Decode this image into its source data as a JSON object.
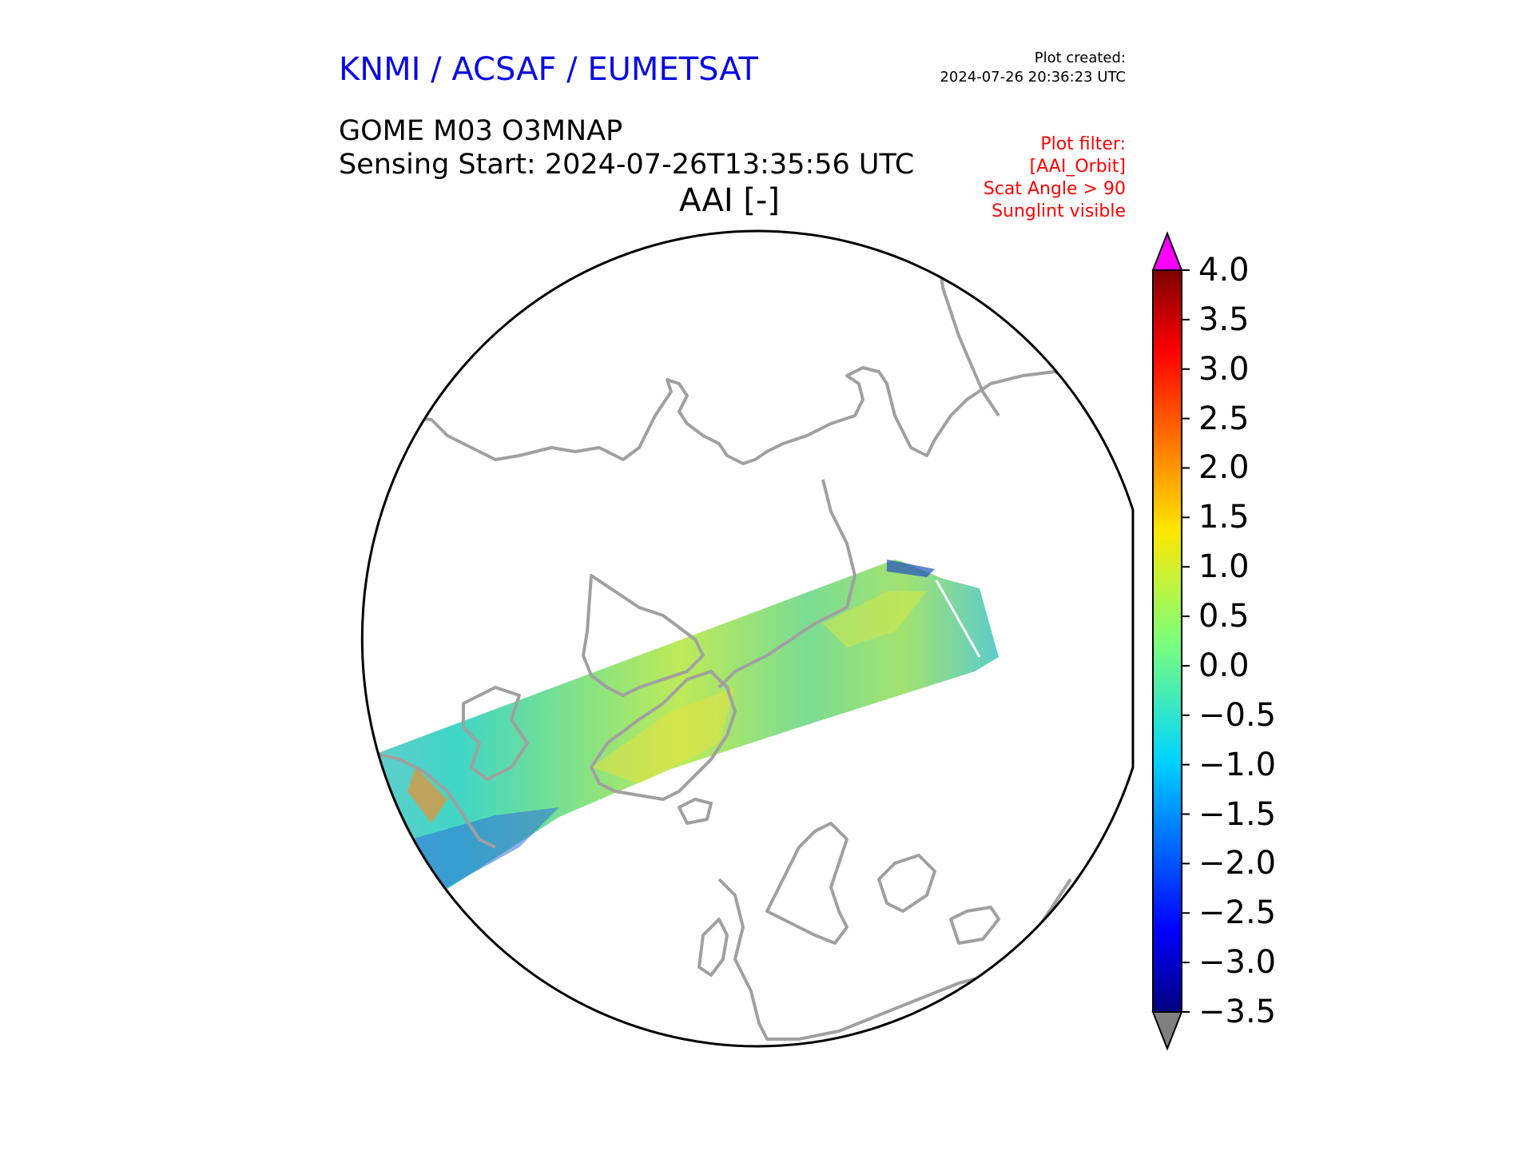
{
  "header": {
    "organization": "KNMI / ACSAF / EUMETSAT",
    "plot_created_label": "Plot created:",
    "plot_created_time": "2024-07-26 20:36:23 UTC",
    "product": "GOME M03 O3MNAP",
    "sensing_start": "Sensing Start: 2024-07-26T13:35:56 UTC",
    "variable": "AAI [-]"
  },
  "filter": {
    "line1": "Plot filter:",
    "line2": "[AAI_Orbit]",
    "line3": "Scat Angle > 90",
    "line4": "Sunglint visible"
  },
  "colorbar": {
    "ticks": [
      "4.0",
      "3.5",
      "3.0",
      "2.5",
      "2.0",
      "1.5",
      "1.0",
      "0.5",
      "0.0",
      "−0.5",
      "−1.0",
      "−1.5",
      "−2.0",
      "−2.5",
      "−3.0",
      "−3.5"
    ],
    "min": -3.5,
    "max": 4.0,
    "colormap": "jet",
    "over_color": "#ff00ff",
    "under_color": "#808080"
  },
  "map": {
    "projection": "north-polar stereographic",
    "coastline_color": "#a0a0a0",
    "border_color": "#000000"
  }
}
